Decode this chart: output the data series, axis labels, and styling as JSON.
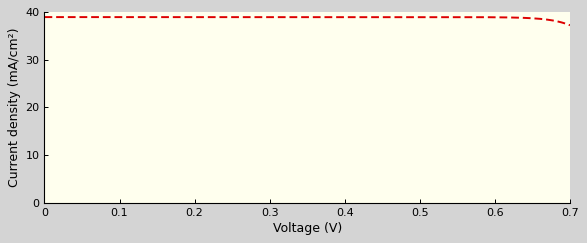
{
  "title": "",
  "xlabel": "Voltage (V)",
  "ylabel": "Current density (mA/cm²)",
  "xlim": [
    0,
    0.7
  ],
  "ylim": [
    0,
    40
  ],
  "xticks": [
    0,
    0.1,
    0.2,
    0.3,
    0.4,
    0.5,
    0.6,
    0.7
  ],
  "yticks": [
    0,
    10,
    20,
    30,
    40
  ],
  "line_color": "#dd0000",
  "line_style": "--",
  "line_width": 1.4,
  "plot_bg_color": "#ffffee",
  "outer_bg_color": "#d4d4d4",
  "Jsc": 39.0,
  "n_ideality": 1.0,
  "J0": 3e-12,
  "figsize": [
    5.87,
    2.43
  ],
  "dpi": 100
}
